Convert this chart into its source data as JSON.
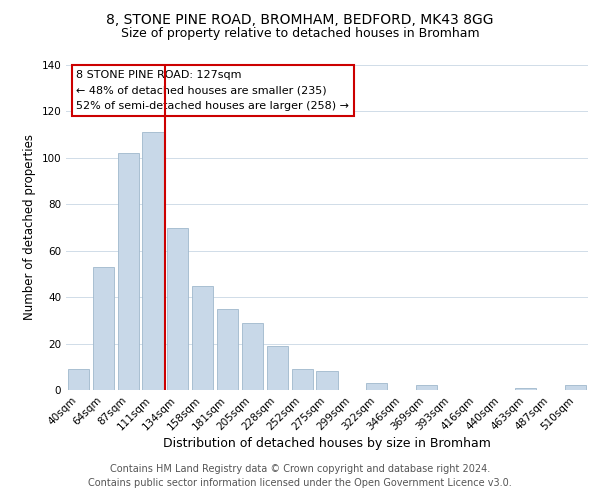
{
  "title": "8, STONE PINE ROAD, BROMHAM, BEDFORD, MK43 8GG",
  "subtitle": "Size of property relative to detached houses in Bromham",
  "xlabel": "Distribution of detached houses by size in Bromham",
  "ylabel": "Number of detached properties",
  "bar_labels": [
    "40sqm",
    "64sqm",
    "87sqm",
    "111sqm",
    "134sqm",
    "158sqm",
    "181sqm",
    "205sqm",
    "228sqm",
    "252sqm",
    "275sqm",
    "299sqm",
    "322sqm",
    "346sqm",
    "369sqm",
    "393sqm",
    "416sqm",
    "440sqm",
    "463sqm",
    "487sqm",
    "510sqm"
  ],
  "bar_values": [
    9,
    53,
    102,
    111,
    70,
    45,
    35,
    29,
    19,
    9,
    8,
    0,
    3,
    0,
    2,
    0,
    0,
    0,
    1,
    0,
    2
  ],
  "bar_color": "#c8d8e8",
  "bar_edge_color": "#a0b8cc",
  "vline_color": "#cc0000",
  "vline_index": 4,
  "ylim": [
    0,
    140
  ],
  "yticks": [
    0,
    20,
    40,
    60,
    80,
    100,
    120,
    140
  ],
  "annotation_title": "8 STONE PINE ROAD: 127sqm",
  "annotation_line1": "← 48% of detached houses are smaller (235)",
  "annotation_line2": "52% of semi-detached houses are larger (258) →",
  "annotation_box_color": "#ffffff",
  "annotation_box_edge": "#cc0000",
  "footer1": "Contains HM Land Registry data © Crown copyright and database right 2024.",
  "footer2": "Contains public sector information licensed under the Open Government Licence v3.0.",
  "title_fontsize": 10,
  "subtitle_fontsize": 9,
  "xlabel_fontsize": 9,
  "ylabel_fontsize": 8.5,
  "tick_fontsize": 7.5,
  "annotation_fontsize": 8,
  "footer_fontsize": 7
}
